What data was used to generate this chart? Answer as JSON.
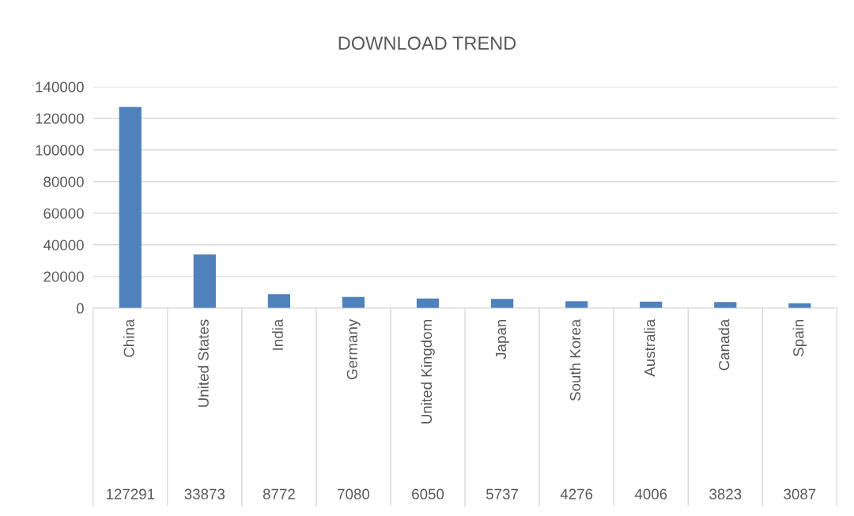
{
  "chart_data": {
    "type": "bar",
    "title": "DOWNLOAD TREND",
    "categories": [
      "China",
      "United States",
      "India",
      "Germany",
      "United Kingdom",
      "Japan",
      "South Korea",
      "Australia",
      "Canada",
      "Spain"
    ],
    "values": [
      127291,
      33873,
      8772,
      7080,
      6050,
      5737,
      4276,
      4006,
      3823,
      3087
    ],
    "color": "#4f81bd",
    "ylim": [
      0,
      140000
    ],
    "yticks": [
      0,
      20000,
      40000,
      60000,
      80000,
      100000,
      120000,
      140000
    ],
    "grid": "y",
    "data_labels": true,
    "legend": false
  }
}
